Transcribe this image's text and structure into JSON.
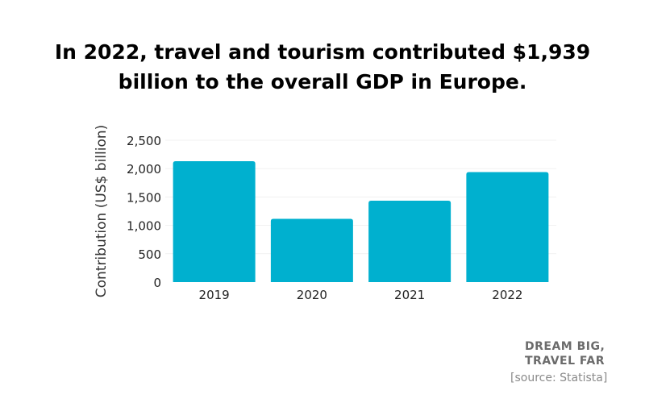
{
  "title_line1": "In 2022, travel and tourism contributed $1,939",
  "title_line2": "billion to the overall GDP in Europe.",
  "brand_line1": "DREAM BIG,",
  "brand_line2": "TRAVEL FAR",
  "source": "[source: Statista]",
  "chart_data": {
    "type": "bar",
    "title": "In 2022, travel and tourism contributed $1,939 billion to the overall GDP in Europe.",
    "xlabel": "",
    "ylabel": "Contribution (US$ billion)",
    "categories": [
      "2019",
      "2020",
      "2021",
      "2022"
    ],
    "values": [
      2130,
      1115,
      1435,
      1939
    ],
    "ylim": [
      0,
      2500
    ],
    "yticks": [
      0,
      500,
      1000,
      1500,
      2000,
      2500
    ],
    "ytick_labels": [
      "0",
      "500",
      "1,000",
      "1,500",
      "2,000",
      "2,500"
    ],
    "bar_color": "#00b0cf",
    "grid": true,
    "legend": "none"
  }
}
